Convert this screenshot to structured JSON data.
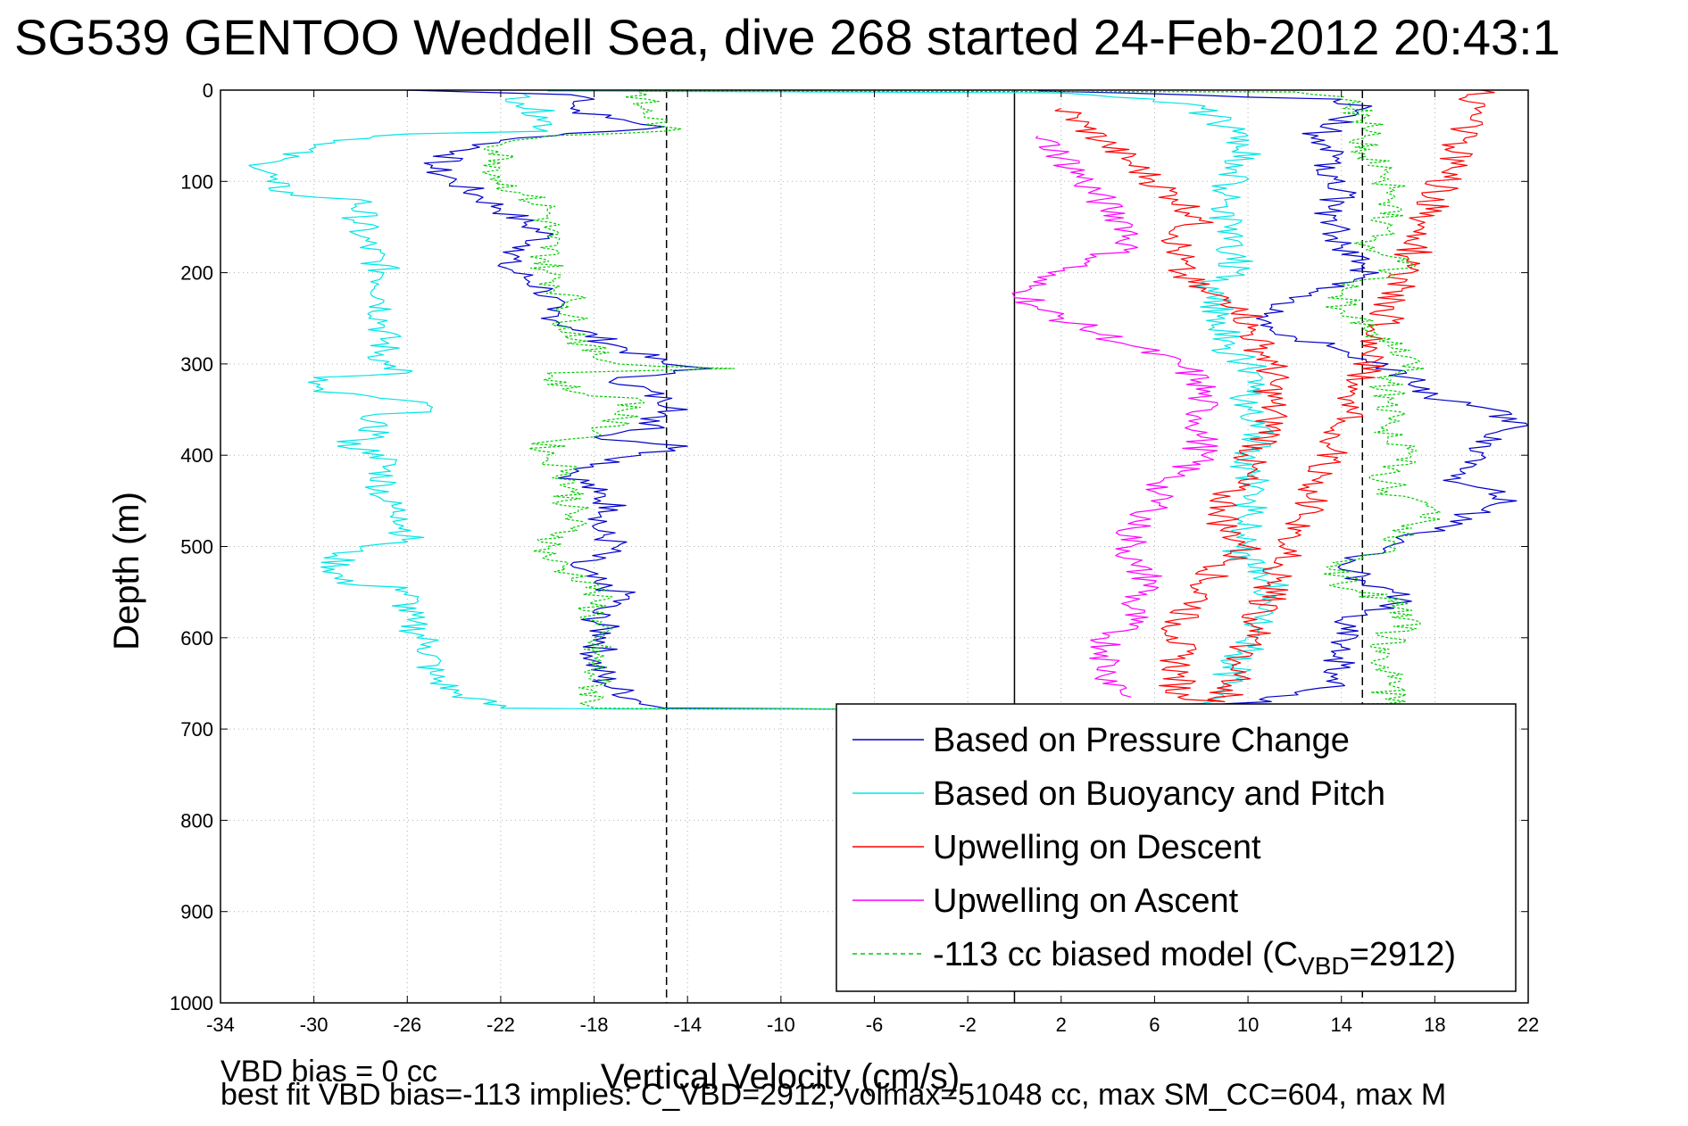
{
  "title": "SG539 GENTOO Weddell Sea, dive 268 started 24-Feb-2012 20:43:1",
  "footer": {
    "line1": "VBD bias = 0 cc",
    "line2": "best fit VBD bias=-113 implies: C_VBD=2912, volmax=51048 cc, max SM_CC=604, max M"
  },
  "chart_data": {
    "type": "line",
    "xlabel": "Vertical Velocity (cm/s)",
    "ylabel": "Depth (m)",
    "xlim": [
      -34,
      22
    ],
    "ylim": [
      0,
      1000
    ],
    "y_reversed": true,
    "xticks": [
      -34,
      -30,
      -26,
      -22,
      -18,
      -14,
      -10,
      -6,
      -2,
      2,
      6,
      10,
      14,
      18,
      22
    ],
    "yticks": [
      0,
      100,
      200,
      300,
      400,
      500,
      600,
      700,
      800,
      900,
      1000
    ],
    "grid": true,
    "legend_position": "bottom-right",
    "vertical_reference_lines": [
      {
        "x": -14.9,
        "style": "dashed",
        "color": "#000000"
      },
      {
        "x": 14.9,
        "style": "dashed",
        "color": "#000000"
      },
      {
        "x": 0,
        "style": "solid",
        "color": "#000000"
      }
    ],
    "series": [
      {
        "name": "Based on Pressure Change",
        "color": "#0000cc",
        "points": [
          [
            -26,
            0
          ],
          [
            -19,
            5
          ],
          [
            -18,
            10
          ],
          [
            -19,
            20
          ],
          [
            -17.5,
            30
          ],
          [
            -15,
            40
          ],
          [
            -22,
            55
          ],
          [
            -24,
            70
          ],
          [
            -25,
            85
          ],
          [
            -24,
            100
          ],
          [
            -23,
            115
          ],
          [
            -22,
            130
          ],
          [
            -21,
            145
          ],
          [
            -20,
            160
          ],
          [
            -21,
            175
          ],
          [
            -22,
            190
          ],
          [
            -21,
            205
          ],
          [
            -20,
            220
          ],
          [
            -20,
            240
          ],
          [
            -19,
            260
          ],
          [
            -17,
            280
          ],
          [
            -15,
            300
          ],
          [
            -13,
            305
          ],
          [
            -17,
            315
          ],
          [
            -15,
            340
          ],
          [
            -14,
            350
          ],
          [
            -16,
            360
          ],
          [
            -15,
            370
          ],
          [
            -18,
            380
          ],
          [
            -14,
            390
          ],
          [
            -16,
            400
          ],
          [
            -19,
            420
          ],
          [
            -18,
            440
          ],
          [
            -17,
            460
          ],
          [
            -18,
            480
          ],
          [
            -17,
            500
          ],
          [
            -19,
            520
          ],
          [
            -18,
            540
          ],
          [
            -16.5,
            555
          ],
          [
            -18,
            570
          ],
          [
            -17.5,
            600
          ],
          [
            -18,
            625
          ],
          [
            -17.5,
            650
          ],
          [
            -16,
            670
          ],
          [
            -15,
            677
          ],
          [
            -8,
            678
          ],
          [
            5,
            678
          ],
          [
            8,
            674
          ],
          [
            11,
            670
          ],
          [
            12,
            660
          ],
          [
            14,
            650
          ],
          [
            14,
            630
          ],
          [
            14,
            610
          ],
          [
            14,
            590
          ],
          [
            15,
            570
          ],
          [
            17,
            560
          ],
          [
            15,
            540
          ],
          [
            14,
            520
          ],
          [
            16,
            500
          ],
          [
            18,
            480
          ],
          [
            20,
            460
          ],
          [
            21.5,
            450
          ],
          [
            19,
            430
          ],
          [
            20,
            400
          ],
          [
            21.5,
            360
          ],
          [
            18.5,
            340
          ],
          [
            17,
            320
          ],
          [
            16,
            300
          ],
          [
            14,
            285
          ],
          [
            12,
            270
          ],
          [
            11,
            255
          ],
          [
            11,
            235
          ],
          [
            13,
            220
          ],
          [
            15,
            205
          ],
          [
            15,
            190
          ],
          [
            14,
            170
          ],
          [
            14,
            150
          ],
          [
            13.5,
            130
          ],
          [
            14,
            110
          ],
          [
            13,
            90
          ],
          [
            14,
            70
          ],
          [
            13,
            50
          ],
          [
            14,
            30
          ],
          [
            15,
            20
          ],
          [
            14,
            10
          ],
          [
            1,
            1
          ]
        ]
      },
      {
        "name": "Based on Buoyancy and Pitch",
        "color": "#00e5e5",
        "points": [
          [
            -21,
            5
          ],
          [
            -21,
            15
          ],
          [
            -20,
            30
          ],
          [
            -20,
            45
          ],
          [
            -26,
            48
          ],
          [
            -30,
            60
          ],
          [
            -32,
            80
          ],
          [
            -32,
            100
          ],
          [
            -31,
            115
          ],
          [
            -28,
            120
          ],
          [
            -28,
            160
          ],
          [
            -27,
            200
          ],
          [
            -27,
            230
          ],
          [
            -27,
            260
          ],
          [
            -27,
            300
          ],
          [
            -26,
            310
          ],
          [
            -30,
            315
          ],
          [
            -30,
            330
          ],
          [
            -26,
            340
          ],
          [
            -25,
            350
          ],
          [
            -28,
            360
          ],
          [
            -27,
            380
          ],
          [
            -29,
            385
          ],
          [
            -27,
            400
          ],
          [
            -27,
            450
          ],
          [
            -26,
            470
          ],
          [
            -26,
            495
          ],
          [
            -28,
            500
          ],
          [
            -29,
            510
          ],
          [
            -29,
            540
          ],
          [
            -26,
            545
          ],
          [
            -26,
            580
          ],
          [
            -25,
            610
          ],
          [
            -25,
            640
          ],
          [
            -24,
            660
          ],
          [
            -22,
            677
          ],
          [
            -17,
            678
          ],
          [
            -12,
            678
          ],
          [
            2,
            678
          ],
          [
            8,
            672
          ],
          [
            9,
            665
          ],
          [
            9,
            650
          ],
          [
            9.5,
            630
          ],
          [
            10,
            610
          ],
          [
            10.5,
            590
          ],
          [
            11,
            560
          ],
          [
            11,
            540
          ],
          [
            10,
            520
          ],
          [
            9.5,
            500
          ],
          [
            10,
            480
          ],
          [
            10,
            460
          ],
          [
            10.5,
            440
          ],
          [
            10,
            420
          ],
          [
            10,
            400
          ],
          [
            10.5,
            380
          ],
          [
            10,
            350
          ],
          [
            10,
            320
          ],
          [
            10,
            300
          ],
          [
            9,
            280
          ],
          [
            9,
            250
          ],
          [
            8,
            210
          ],
          [
            9.5,
            200
          ],
          [
            9.5,
            180
          ],
          [
            9,
            150
          ],
          [
            9,
            120
          ],
          [
            9.5,
            90
          ],
          [
            10,
            60
          ],
          [
            9,
            40
          ],
          [
            8,
            20
          ],
          [
            6,
            10
          ],
          [
            2,
            3
          ],
          [
            -20,
            1
          ]
        ]
      },
      {
        "name": "Upwelling on Descent",
        "color": "#ff0000",
        "points": [
          [
            2,
            20
          ],
          [
            3,
            40
          ],
          [
            4,
            60
          ],
          [
            5,
            80
          ],
          [
            6,
            100
          ],
          [
            7,
            120
          ],
          [
            8,
            140
          ],
          [
            7,
            160
          ],
          [
            7,
            180
          ],
          [
            7,
            200
          ],
          [
            8,
            220
          ],
          [
            10,
            240
          ],
          [
            10,
            260
          ],
          [
            10.5,
            280
          ],
          [
            11,
            300
          ],
          [
            11,
            320
          ],
          [
            11,
            340
          ],
          [
            11,
            360
          ],
          [
            11,
            380
          ],
          [
            10,
            400
          ],
          [
            10,
            420
          ],
          [
            9,
            440
          ],
          [
            9,
            460
          ],
          [
            9,
            480
          ],
          [
            10,
            500
          ],
          [
            9,
            520
          ],
          [
            8,
            540
          ],
          [
            8,
            560
          ],
          [
            7,
            580
          ],
          [
            7,
            600
          ],
          [
            7,
            620
          ],
          [
            7,
            640
          ],
          [
            7,
            665
          ],
          [
            9,
            670
          ],
          [
            20,
            0
          ]
        ]
      },
      {
        "name": "Upwelling on Ascent",
        "color": "#ff00ff",
        "points": [
          [
            1,
            50
          ],
          [
            2,
            70
          ],
          [
            3,
            100
          ],
          [
            4,
            130
          ],
          [
            5,
            150
          ],
          [
            5,
            170
          ],
          [
            3,
            190
          ],
          [
            1,
            205
          ],
          [
            0.5,
            220
          ],
          [
            1,
            240
          ],
          [
            3,
            260
          ],
          [
            5,
            280
          ],
          [
            7,
            300
          ],
          [
            8,
            320
          ],
          [
            8,
            340
          ],
          [
            8,
            360
          ],
          [
            8,
            380
          ],
          [
            8,
            400
          ],
          [
            7,
            420
          ],
          [
            6,
            440
          ],
          [
            6,
            460
          ],
          [
            5,
            480
          ],
          [
            5,
            500
          ],
          [
            5,
            520
          ],
          [
            6,
            540
          ],
          [
            5,
            560
          ],
          [
            5,
            580
          ],
          [
            4,
            600
          ],
          [
            4,
            620
          ],
          [
            4,
            640
          ],
          [
            5,
            665
          ]
        ]
      },
      {
        "name": "-113 cc biased model (C_VBD=2912)",
        "color": "#00cc00",
        "dashed": true,
        "points": [
          [
            -16,
            0
          ],
          [
            -16,
            20
          ],
          [
            -15,
            40
          ],
          [
            -15,
            45
          ],
          [
            -20,
            50
          ],
          [
            -22,
            60
          ],
          [
            -22,
            80
          ],
          [
            -22,
            100
          ],
          [
            -21,
            115
          ],
          [
            -20,
            130
          ],
          [
            -20,
            160
          ],
          [
            -20,
            200
          ],
          [
            -19,
            230
          ],
          [
            -19,
            260
          ],
          [
            -18,
            290
          ],
          [
            -17,
            300
          ],
          [
            -12,
            305
          ],
          [
            -20,
            310
          ],
          [
            -19,
            330
          ],
          [
            -16,
            340
          ],
          [
            -17,
            360
          ],
          [
            -18,
            380
          ],
          [
            -20,
            385
          ],
          [
            -20,
            400
          ],
          [
            -19,
            420
          ],
          [
            -19,
            440
          ],
          [
            -19,
            480
          ],
          [
            -20,
            500
          ],
          [
            -20,
            510
          ],
          [
            -19,
            530
          ],
          [
            -18,
            540
          ],
          [
            -18,
            560
          ],
          [
            -18,
            600
          ],
          [
            -18,
            640
          ],
          [
            -18,
            677
          ],
          [
            -14,
            678
          ],
          [
            -8,
            678
          ],
          [
            2,
            678
          ],
          [
            16,
            672
          ],
          [
            16,
            650
          ],
          [
            16,
            620
          ],
          [
            16,
            600
          ],
          [
            17,
            580
          ],
          [
            16,
            560
          ],
          [
            14,
            540
          ],
          [
            14,
            520
          ],
          [
            16,
            500
          ],
          [
            17,
            480
          ],
          [
            18,
            460
          ],
          [
            16,
            440
          ],
          [
            16,
            420
          ],
          [
            17,
            400
          ],
          [
            16,
            380
          ],
          [
            16,
            360
          ],
          [
            16,
            340
          ],
          [
            16,
            320
          ],
          [
            17,
            300
          ],
          [
            16,
            280
          ],
          [
            15,
            260
          ],
          [
            14,
            240
          ],
          [
            14,
            220
          ],
          [
            16,
            200
          ],
          [
            17,
            190
          ],
          [
            15,
            170
          ],
          [
            16,
            150
          ],
          [
            16,
            120
          ],
          [
            16,
            90
          ],
          [
            15,
            70
          ],
          [
            15,
            50
          ],
          [
            15,
            30
          ],
          [
            14,
            10
          ],
          [
            12,
            2
          ],
          [
            -16,
            1
          ]
        ]
      }
    ]
  },
  "legend": {
    "entries": [
      {
        "label": "Based on Pressure Change",
        "color": "#0000cc",
        "dashed": false
      },
      {
        "label": "Based on Buoyancy and Pitch",
        "color": "#00e5e5",
        "dashed": false
      },
      {
        "label": "Upwelling on Descent",
        "color": "#ff0000",
        "dashed": false
      },
      {
        "label": "Upwelling on Ascent",
        "color": "#ff00ff",
        "dashed": false
      },
      {
        "label": "-113 cc biased model (C",
        "sub": "VBD",
        "suffix": "=2912)",
        "color": "#00cc00",
        "dashed": true
      }
    ]
  }
}
